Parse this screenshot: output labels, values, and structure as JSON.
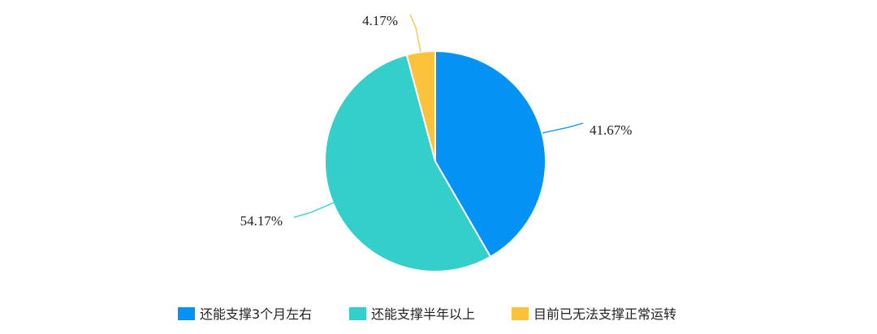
{
  "chart_data": {
    "type": "pie",
    "slices": [
      {
        "label": "还能支撑3个月左右",
        "value": 41.67,
        "display": "41.67%",
        "color": "#0592f5"
      },
      {
        "label": "还能支撑半年以上",
        "value": 54.17,
        "display": "54.17%",
        "color": "#35cfcb"
      },
      {
        "label": "目前已无法支撑正常运转",
        "value": 4.17,
        "display": "4.17%",
        "color": "#fdc23b"
      }
    ],
    "legend_position": "bottom"
  }
}
